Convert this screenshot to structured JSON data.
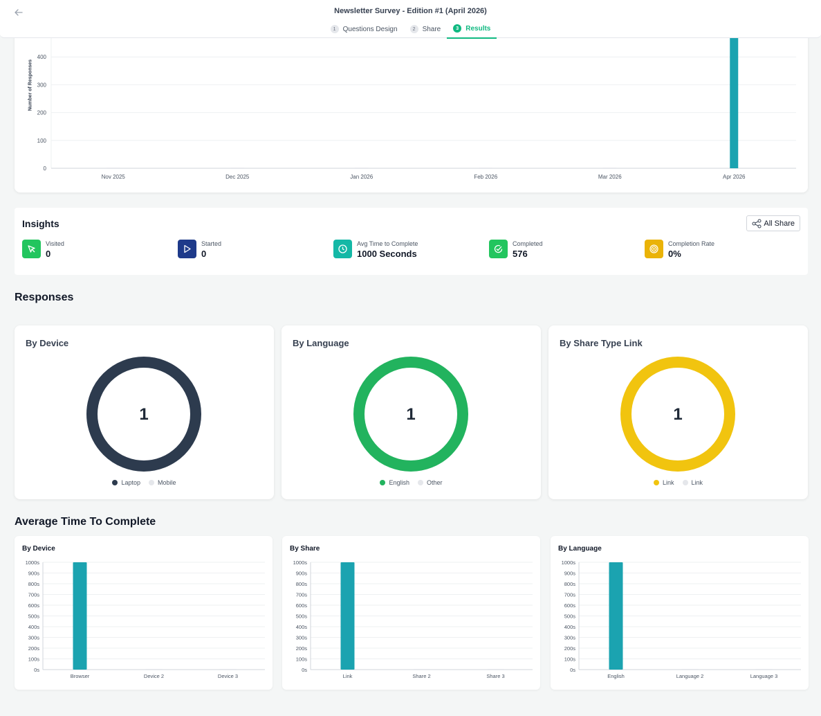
{
  "header": {
    "title": "Newsletter Survey - Edition #1 (April 2026)",
    "tabs": [
      {
        "num": "1",
        "label": "Questions Design"
      },
      {
        "num": "2",
        "label": "Share"
      },
      {
        "num": "3",
        "label": "Results"
      }
    ]
  },
  "insights": {
    "title": "Insights",
    "all_share_label": "All Share",
    "metrics": [
      {
        "label": "Visited",
        "value": "0",
        "icon": "cursor-icon",
        "color": "#22c55e"
      },
      {
        "label": "Started",
        "value": "0",
        "icon": "play-icon",
        "color": "#1e3a8a"
      },
      {
        "label": "Avg Time to Complete",
        "value": "1000 Seconds",
        "icon": "clock-icon",
        "color": "#14b8a6"
      },
      {
        "label": "Completed",
        "value": "576",
        "icon": "check-circle-icon",
        "color": "#22c55e"
      },
      {
        "label": "Completion Rate",
        "value": "0%",
        "icon": "target-icon",
        "color": "#eab308"
      }
    ]
  },
  "responses": {
    "title": "Responses",
    "cards": [
      {
        "title": "By Device",
        "center": "1",
        "color": "#2d3b4e",
        "legend": [
          "Laptop",
          "Mobile"
        ]
      },
      {
        "title": "By Language",
        "center": "1",
        "color": "#22b35e",
        "legend": [
          "English",
          "Other"
        ]
      },
      {
        "title": "By Share Type Link",
        "center": "1",
        "color": "#f1c40f",
        "legend": [
          "Link",
          "Link"
        ]
      }
    ]
  },
  "avg_time": {
    "title": "Average Time To Complete"
  },
  "chart_data": [
    {
      "type": "bar",
      "ylabel": "Number of Responses",
      "categories": [
        "Nov 2025",
        "Dec 2025",
        "Jan 2026",
        "Feb 2026",
        "Mar 2026",
        "Apr 2026"
      ],
      "values": [
        0,
        0,
        0,
        0,
        0,
        576
      ],
      "yticks": [
        0,
        100,
        200,
        300,
        400
      ],
      "color": "#1ba3b0"
    },
    {
      "type": "bar",
      "title": "By Device",
      "categories": [
        "Browser",
        "Device 2",
        "Device 3"
      ],
      "values": [
        1000,
        0,
        0
      ],
      "ylim": [
        0,
        1000
      ],
      "yticks": [
        "0s",
        "100s",
        "200s",
        "300s",
        "400s",
        "500s",
        "600s",
        "700s",
        "800s",
        "900s",
        "1000s"
      ],
      "color": "#1ba3b0"
    },
    {
      "type": "bar",
      "title": "By Share",
      "categories": [
        "Link",
        "Share 2",
        "Share 3"
      ],
      "values": [
        1000,
        0,
        0
      ],
      "ylim": [
        0,
        1000
      ],
      "yticks": [
        "0s",
        "100s",
        "200s",
        "300s",
        "400s",
        "500s",
        "600s",
        "700s",
        "800s",
        "900s",
        "1000s"
      ],
      "color": "#1ba3b0"
    },
    {
      "type": "bar",
      "title": "By Language",
      "categories": [
        "English",
        "Language 2",
        "Language 3"
      ],
      "values": [
        1000,
        0,
        0
      ],
      "ylim": [
        0,
        1000
      ],
      "yticks": [
        "0s",
        "100s",
        "200s",
        "300s",
        "400s",
        "500s",
        "600s",
        "700s",
        "800s",
        "900s",
        "1000s"
      ],
      "color": "#1ba3b0"
    }
  ]
}
